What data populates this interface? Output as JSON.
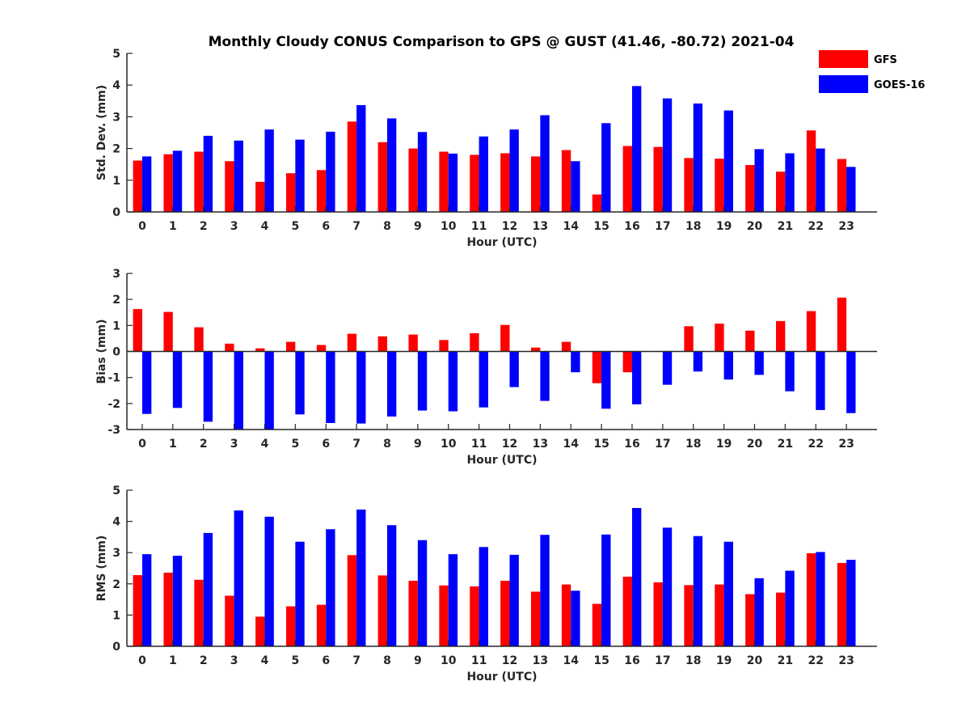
{
  "title": "Monthly Cloudy CONUS Comparison to GPS @ GUST (41.46, -80.72) 2021-04",
  "legend": {
    "placement": "top-right",
    "entries": [
      {
        "name": "GFS",
        "color": "#ff0000"
      },
      {
        "name": "GOES-16",
        "color": "#0000ff"
      }
    ]
  },
  "chart_data": [
    {
      "type": "bar",
      "xlabel": "Hour (UTC)",
      "ylabel": "Std. Dev. (mm)",
      "ylim": [
        0,
        5
      ],
      "yticks": [
        0,
        1,
        2,
        3,
        4,
        5
      ],
      "categories": [
        "0",
        "1",
        "2",
        "3",
        "4",
        "5",
        "6",
        "7",
        "8",
        "9",
        "10",
        "11",
        "12",
        "13",
        "14",
        "15",
        "16",
        "17",
        "18",
        "19",
        "20",
        "21",
        "22",
        "23"
      ],
      "series": [
        {
          "name": "GFS",
          "color": "#ff0000",
          "values": [
            1.62,
            1.82,
            1.9,
            1.6,
            0.95,
            1.22,
            1.32,
            2.85,
            2.2,
            2.0,
            1.9,
            1.8,
            1.85,
            1.75,
            1.95,
            0.55,
            2.08,
            2.05,
            1.7,
            1.68,
            1.48,
            1.27,
            2.57,
            1.67
          ]
        },
        {
          "name": "GOES-16",
          "color": "#0000ff",
          "values": [
            1.75,
            1.93,
            2.4,
            2.25,
            2.6,
            2.28,
            2.53,
            3.37,
            2.95,
            2.52,
            1.84,
            2.38,
            2.6,
            3.05,
            1.6,
            2.8,
            3.97,
            3.58,
            3.42,
            3.2,
            1.98,
            1.85,
            2.0,
            1.42
          ]
        }
      ]
    },
    {
      "type": "bar",
      "xlabel": "Hour (UTC)",
      "ylabel": "Bias (mm)",
      "ylim": [
        -3,
        3
      ],
      "yticks": [
        -3,
        -2,
        -1,
        0,
        1,
        2,
        3
      ],
      "categories": [
        "0",
        "1",
        "2",
        "3",
        "4",
        "5",
        "6",
        "7",
        "8",
        "9",
        "10",
        "11",
        "12",
        "13",
        "14",
        "15",
        "16",
        "17",
        "18",
        "19",
        "20",
        "21",
        "22",
        "23"
      ],
      "series": [
        {
          "name": "GFS",
          "color": "#ff0000",
          "values": [
            1.63,
            1.52,
            0.93,
            0.3,
            0.12,
            0.37,
            0.25,
            0.68,
            0.58,
            0.65,
            0.44,
            0.7,
            1.02,
            0.15,
            0.37,
            -1.22,
            -0.8,
            0.0,
            0.97,
            1.07,
            0.8,
            1.17,
            1.55,
            2.07
          ]
        },
        {
          "name": "GOES-16",
          "color": "#0000ff",
          "values": [
            -2.4,
            -2.17,
            -2.7,
            -3.0,
            -3.0,
            -2.42,
            -2.75,
            -2.77,
            -2.5,
            -2.27,
            -2.3,
            -2.15,
            -1.37,
            -1.9,
            -0.8,
            -2.2,
            -2.03,
            -1.28,
            -0.77,
            -1.08,
            -0.9,
            -1.53,
            -2.25,
            -2.37
          ]
        }
      ]
    },
    {
      "type": "bar",
      "xlabel": "Hour (UTC)",
      "ylabel": "RMS (mm)",
      "ylim": [
        0,
        5
      ],
      "yticks": [
        0,
        1,
        2,
        3,
        4,
        5
      ],
      "categories": [
        "0",
        "1",
        "2",
        "3",
        "4",
        "5",
        "6",
        "7",
        "8",
        "9",
        "10",
        "11",
        "12",
        "13",
        "14",
        "15",
        "16",
        "17",
        "18",
        "19",
        "20",
        "21",
        "22",
        "23"
      ],
      "series": [
        {
          "name": "GFS",
          "color": "#ff0000",
          "values": [
            2.28,
            2.36,
            2.13,
            1.62,
            0.95,
            1.28,
            1.33,
            2.92,
            2.27,
            2.1,
            1.95,
            1.92,
            2.1,
            1.75,
            1.98,
            1.36,
            2.23,
            2.05,
            1.96,
            1.98,
            1.67,
            1.72,
            2.98,
            2.67
          ]
        },
        {
          "name": "GOES-16",
          "color": "#0000ff",
          "values": [
            2.95,
            2.9,
            3.63,
            4.35,
            4.15,
            3.35,
            3.75,
            4.38,
            3.88,
            3.4,
            2.95,
            3.18,
            2.93,
            3.57,
            1.78,
            3.58,
            4.43,
            3.8,
            3.53,
            3.35,
            2.18,
            2.42,
            3.02,
            2.77
          ]
        }
      ]
    }
  ]
}
